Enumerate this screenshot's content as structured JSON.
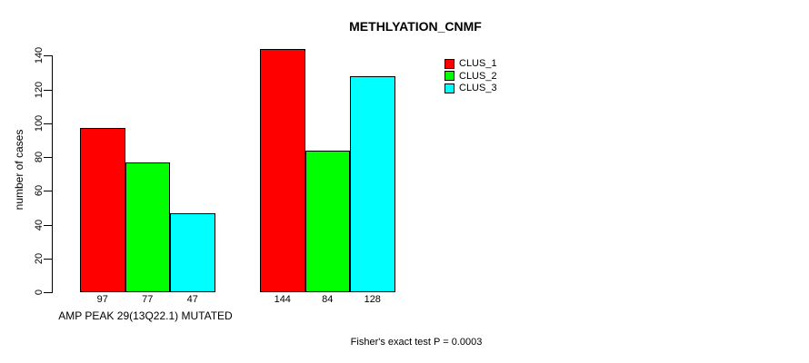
{
  "chart_data": {
    "type": "bar",
    "title": "METHLYATION_CNMF",
    "ylabel": "number of cases",
    "xlabel": "AMP PEAK 29(13Q22.1) MUTATED",
    "annotation": "Fisher's exact test P = 0.0003",
    "ylim": [
      0,
      144
    ],
    "yticks": [
      0,
      20,
      40,
      60,
      80,
      100,
      120,
      140
    ],
    "grid": false,
    "bar_value_labels_shown": true,
    "categories": [
      "group-1",
      "group-2"
    ],
    "series": [
      {
        "name": "CLUS_1",
        "color": "#ff0000",
        "values": [
          97,
          144
        ]
      },
      {
        "name": "CLUS_2",
        "color": "#00ff00",
        "values": [
          77,
          84
        ]
      },
      {
        "name": "CLUS_3",
        "color": "#00ffff",
        "values": [
          47,
          128
        ]
      }
    ],
    "legend": {
      "position": "top-right",
      "entries": [
        {
          "label": "CLUS_1",
          "color": "#ff0000"
        },
        {
          "label": "CLUS_2",
          "color": "#00ff00"
        },
        {
          "label": "CLUS_3",
          "color": "#00ffff"
        }
      ]
    }
  }
}
